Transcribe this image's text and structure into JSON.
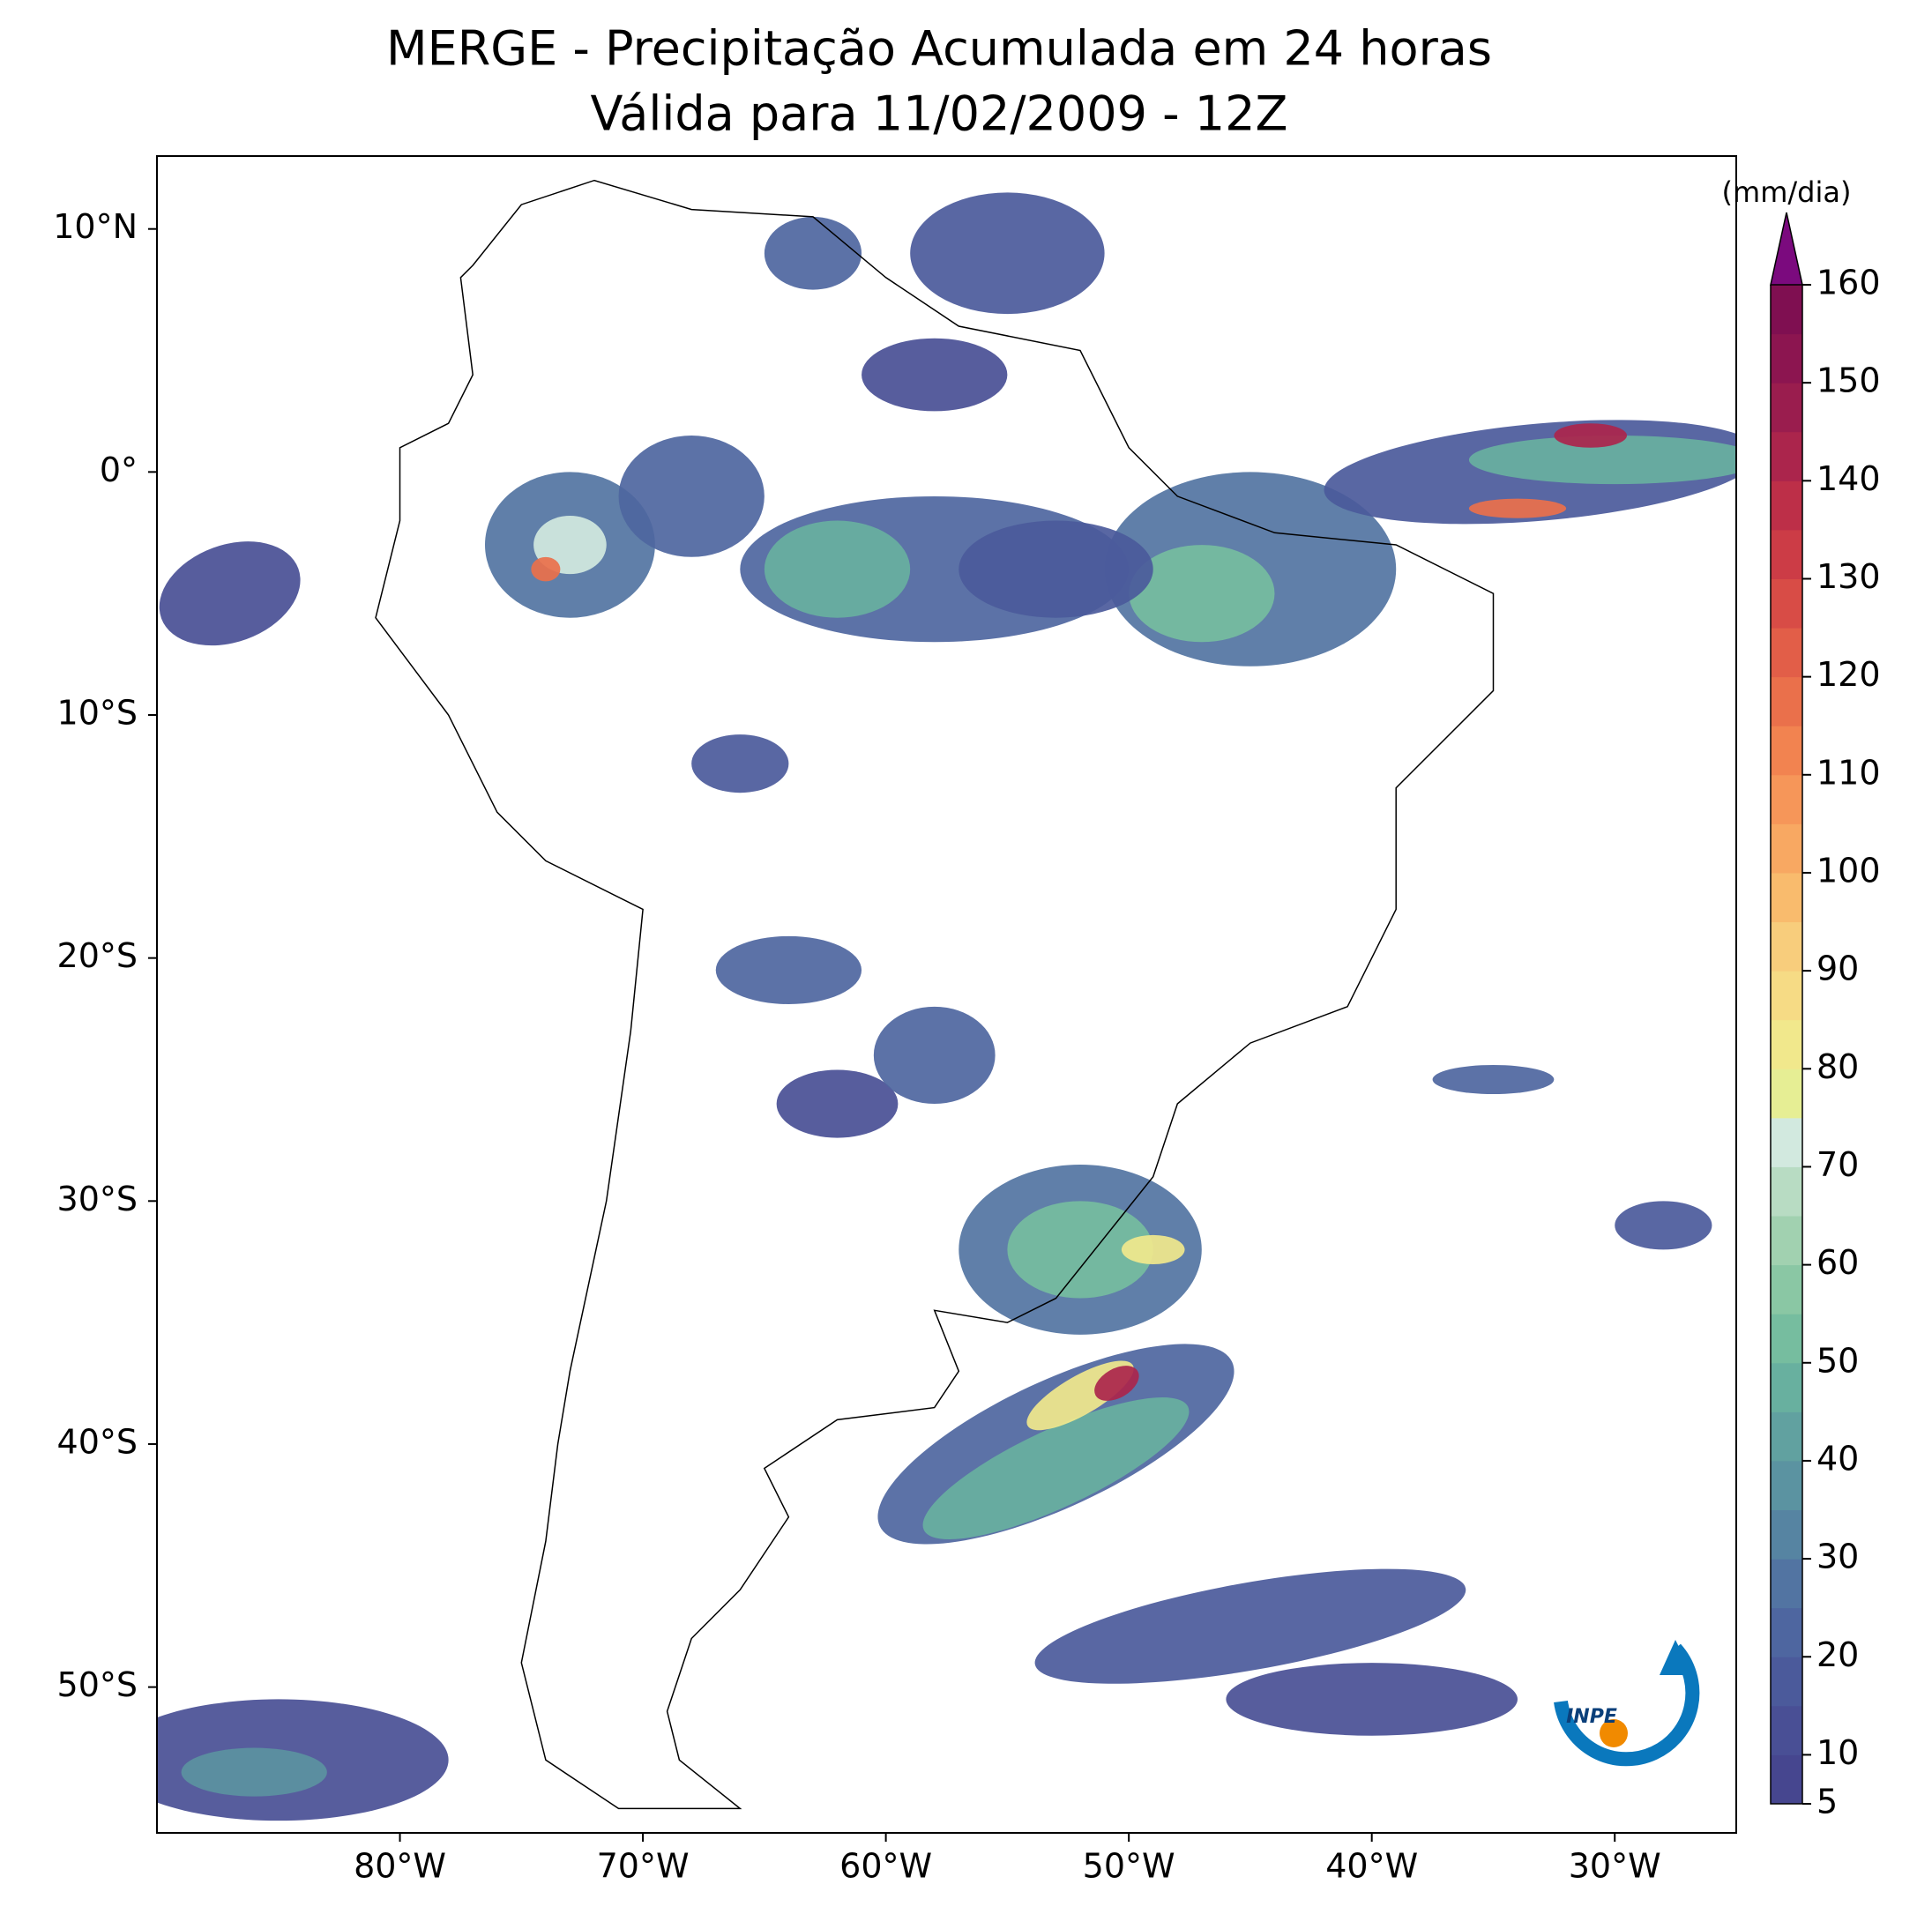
{
  "map": {
    "title": [
      "MERGE - Precipitação Acumulada em 24 horas",
      "Válida para 11/02/2009 - 12Z"
    ],
    "lon_range": [
      -90,
      -25
    ],
    "lat_range": [
      -56,
      13
    ],
    "lon_ticks": [
      {
        "value": -80,
        "label": "80°W"
      },
      {
        "value": -70,
        "label": "70°W"
      },
      {
        "value": -60,
        "label": "60°W"
      },
      {
        "value": -50,
        "label": "50°W"
      },
      {
        "value": -40,
        "label": "40°W"
      },
      {
        "value": -30,
        "label": "30°W"
      }
    ],
    "lat_ticks": [
      {
        "value": 10,
        "label": "10°N"
      },
      {
        "value": 0,
        "label": "0°"
      },
      {
        "value": -10,
        "label": "10°S"
      },
      {
        "value": -20,
        "label": "20°S"
      },
      {
        "value": -30,
        "label": "30°S"
      },
      {
        "value": -40,
        "label": "40°S"
      },
      {
        "value": -50,
        "label": "50°S"
      }
    ],
    "colorbar": {
      "label": "(mm/dia)",
      "lim": [
        5,
        160
      ],
      "ticks": [
        5,
        10,
        20,
        30,
        40,
        50,
        60,
        70,
        80,
        90,
        100,
        110,
        120,
        130,
        140,
        150,
        160
      ],
      "colors": [
        "#46468f",
        "#494f95",
        "#4b5a9b",
        "#4e66a0",
        "#5274a2",
        "#5684a2",
        "#5b93a1",
        "#61a1a0",
        "#68b09f",
        "#76bd9f",
        "#8ac7a4",
        "#a1d1b0",
        "#b8dcc3",
        "#d2e9df",
        "#e6ee94",
        "#f1e88c",
        "#f6db85",
        "#f8cd7c",
        "#f9bb6d",
        "#f8a862",
        "#f69659",
        "#f28350",
        "#ea704b",
        "#e25e48",
        "#d84c46",
        "#cc3c46",
        "#bd2f48",
        "#ab254c",
        "#9a1d4e",
        "#8c1550",
        "#7f0f51"
      ],
      "extend_color": "#7b0a7e"
    },
    "logo_text": "INPE"
  }
}
